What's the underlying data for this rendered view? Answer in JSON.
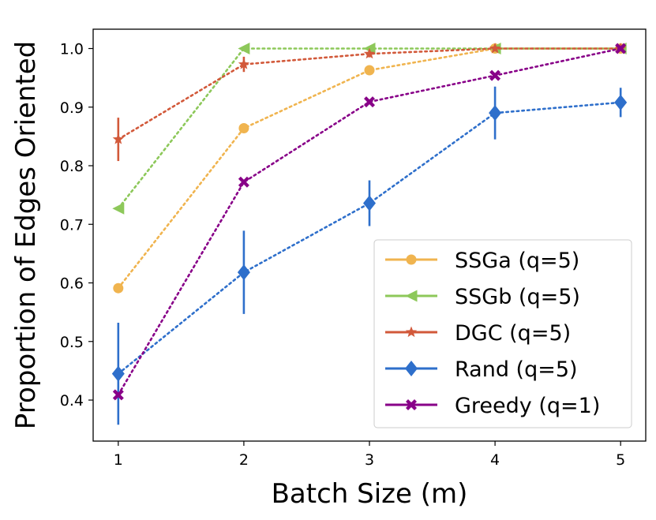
{
  "chart_data": {
    "type": "line",
    "title": "",
    "xlabel": "Batch Size (m)",
    "ylabel": "Proportion of Edges Oriented",
    "x": [
      1,
      2,
      3,
      4,
      5
    ],
    "xticks": [
      "1",
      "2",
      "3",
      "4",
      "5"
    ],
    "yticks": [
      "0.4",
      "0.5",
      "0.6",
      "0.7",
      "0.8",
      "0.9",
      "1.0"
    ],
    "ytick_values": [
      0.4,
      0.5,
      0.6,
      0.7,
      0.8,
      0.9,
      1.0
    ],
    "xlim": [
      0.8,
      5.2
    ],
    "ylim": [
      0.33,
      1.033
    ],
    "grid": false,
    "legend_position": "lower-right",
    "series": [
      {
        "name": "SSGa (q=5)",
        "color": "#f0b44f",
        "marker": "circle",
        "values": [
          0.591,
          0.864,
          0.963,
          1.0,
          1.0
        ],
        "errors": [
          0,
          0,
          0,
          0,
          0
        ]
      },
      {
        "name": "SSGb (q=5)",
        "color": "#8dc85a",
        "marker": "triangle-left",
        "values": [
          0.727,
          1.0,
          1.0,
          1.0,
          1.0
        ],
        "errors": [
          0,
          0,
          0,
          0,
          0
        ]
      },
      {
        "name": "DGC (q=5)",
        "color": "#d2593a",
        "marker": "star",
        "values": [
          0.845,
          0.973,
          0.991,
          1.0,
          1.0
        ],
        "errors": [
          0.037,
          0.013,
          0.006,
          0,
          0
        ]
      },
      {
        "name": "Rand (q=5)",
        "color": "#2e6fcb",
        "marker": "diamond",
        "values": [
          0.445,
          0.618,
          0.736,
          0.89,
          0.908
        ],
        "errors": [
          0.087,
          0.071,
          0.039,
          0.045,
          0.025
        ]
      },
      {
        "name": "Greedy (q=1)",
        "color": "#880088",
        "marker": "x",
        "values": [
          0.409,
          0.772,
          0.909,
          0.954,
          1.0
        ],
        "errors": [
          0,
          0,
          0,
          0,
          0
        ]
      }
    ]
  }
}
